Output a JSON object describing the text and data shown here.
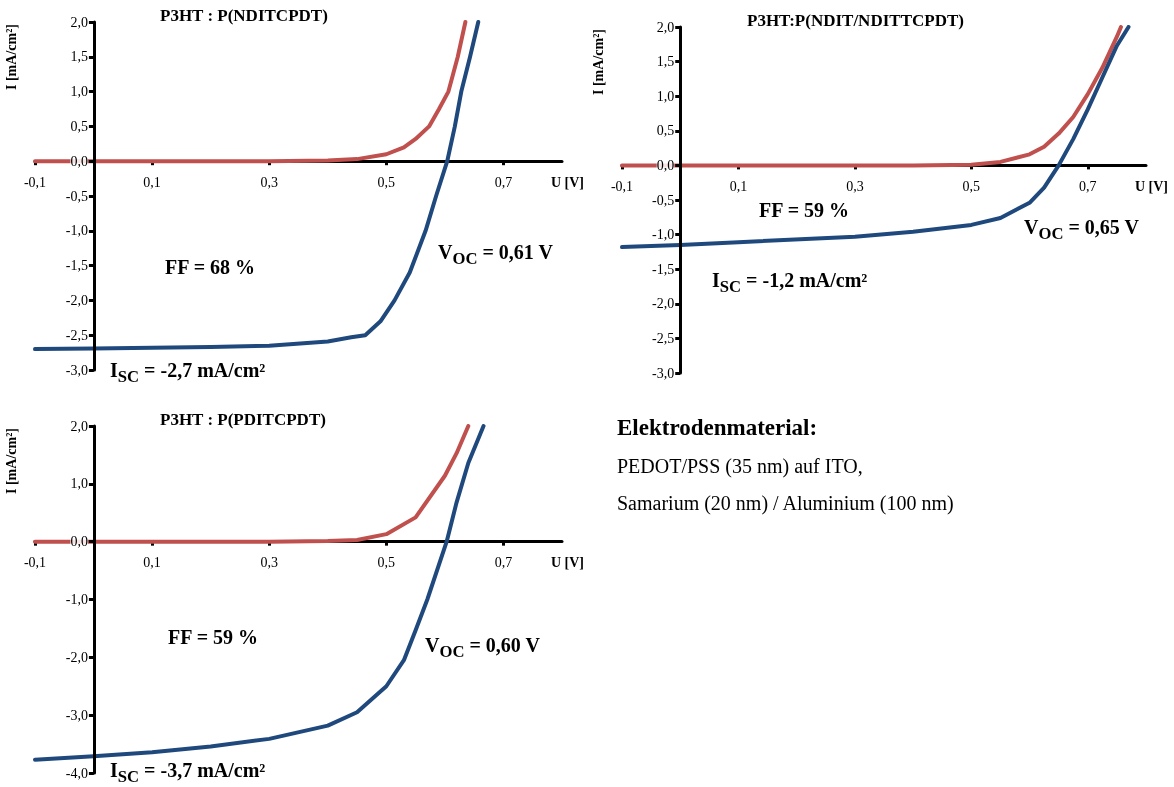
{
  "chart_data": [
    {
      "type": "line",
      "title": "P3HT : P(NDITCPDT)",
      "xlabel": "U [V]",
      "ylabel": "I [mA/cm²]",
      "marker": "none",
      "line_style": "solid",
      "xlim": [
        -0.1,
        0.8
      ],
      "xticks": [
        {
          "value": -0.1,
          "label": "-0,1"
        },
        {
          "value": 0.1,
          "label": "0,1"
        },
        {
          "value": 0.3,
          "label": "0,3"
        },
        {
          "value": 0.5,
          "label": "0,5"
        },
        {
          "value": 0.7,
          "label": "0,7"
        }
      ],
      "ylim": [
        -3,
        2
      ],
      "yticks": [
        {
          "value": -3,
          "label": "-3,0"
        },
        {
          "value": -2.5,
          "label": "-2,5"
        },
        {
          "value": -2,
          "label": "-2,0"
        },
        {
          "value": -1.5,
          "label": "-1,5"
        },
        {
          "value": -1,
          "label": "-1,0"
        },
        {
          "value": -0.5,
          "label": "-0,5"
        },
        {
          "value": 0,
          "label": "0,0"
        },
        {
          "value": 0.5,
          "label": "0,5"
        },
        {
          "value": 1,
          "label": "1,0"
        },
        {
          "value": 1.5,
          "label": "1,5"
        },
        {
          "value": 2,
          "label": "2,0"
        }
      ],
      "series": [
        {
          "color": "#c0504d",
          "x": [
            -0.1,
            0.3,
            0.4,
            0.45,
            0.5,
            0.53,
            0.55,
            0.573,
            0.59,
            0.606,
            0.622,
            0.635
          ],
          "values": [
            0,
            0,
            0.01,
            0.03,
            0.1,
            0.2,
            0.32,
            0.5,
            0.75,
            1.0,
            1.5,
            2.0
          ]
        },
        {
          "color": "#1f497d",
          "x": [
            -0.1,
            0,
            0.1,
            0.2,
            0.3,
            0.4,
            0.44,
            0.464,
            0.49,
            0.514,
            0.54,
            0.567,
            0.585,
            0.604,
            0.617,
            0.628,
            0.643,
            0.657
          ],
          "values": [
            -2.7,
            -2.69,
            -2.68,
            -2.67,
            -2.65,
            -2.59,
            -2.53,
            -2.5,
            -2.3,
            -2.0,
            -1.6,
            -1.0,
            -0.5,
            0,
            0.5,
            1.0,
            1.5,
            2.0
          ]
        }
      ],
      "annotations": [
        "FF = 68 %",
        "V$_{OC}$ = 0,61 V",
        "I$_{SC}$ = -2,7 mA/cm²"
      ]
    },
    {
      "type": "line",
      "title": "P3HT:P(NDIT/NDITTCPDT)",
      "xlabel": "U [V]",
      "ylabel": "I [mA/cm²]",
      "marker": "none",
      "line_style": "solid",
      "xlim": [
        -0.1,
        0.8
      ],
      "xticks": [
        {
          "value": -0.1,
          "label": "-0,1"
        },
        {
          "value": 0.1,
          "label": "0,1"
        },
        {
          "value": 0.3,
          "label": "0,3"
        },
        {
          "value": 0.5,
          "label": "0,5"
        },
        {
          "value": 0.7,
          "label": "0,7"
        }
      ],
      "ylim": [
        -3,
        2
      ],
      "yticks": [
        {
          "value": -3,
          "label": "-3,0"
        },
        {
          "value": -2.5,
          "label": "-2,5"
        },
        {
          "value": -2,
          "label": "-2,0"
        },
        {
          "value": -1.5,
          "label": "-1,5"
        },
        {
          "value": -1,
          "label": "-1,0"
        },
        {
          "value": -0.5,
          "label": "-0,5"
        },
        {
          "value": 0,
          "label": "0,0"
        },
        {
          "value": 0.5,
          "label": "0,5"
        },
        {
          "value": 1,
          "label": "1,0"
        },
        {
          "value": 1.5,
          "label": "1,5"
        },
        {
          "value": 2,
          "label": "2,0"
        }
      ],
      "series": [
        {
          "color": "#c0504d",
          "x": [
            -0.1,
            0.4,
            0.5,
            0.55,
            0.6,
            0.625,
            0.65,
            0.675,
            0.7,
            0.725,
            0.75,
            0.757
          ],
          "values": [
            0,
            0,
            0.01,
            0.05,
            0.16,
            0.27,
            0.46,
            0.7,
            1.03,
            1.41,
            1.86,
            2.0
          ]
        },
        {
          "color": "#1f497d",
          "x": [
            -0.1,
            0,
            0.1,
            0.3,
            0.4,
            0.5,
            0.55,
            0.6,
            0.625,
            0.65,
            0.675,
            0.7,
            0.725,
            0.75,
            0.77
          ],
          "values": [
            -1.18,
            -1.15,
            -1.11,
            -1.03,
            -0.96,
            -0.86,
            -0.76,
            -0.54,
            -0.32,
            0,
            0.38,
            0.81,
            1.27,
            1.73,
            2.0
          ]
        }
      ],
      "annotations": [
        "FF = 59 %",
        "V$_{OC}$ = 0,65 V",
        "I$_{SC}$ = -1,2 mA/cm²"
      ]
    },
    {
      "type": "line",
      "title": "P3HT : P(PDITCPDT)",
      "xlabel": "U [V]",
      "ylabel": "I [mA/cm²]",
      "marker": "none",
      "line_style": "solid",
      "xlim": [
        -0.1,
        0.8
      ],
      "xticks": [
        {
          "value": -0.1,
          "label": "-0,1"
        },
        {
          "value": 0.1,
          "label": "0,1"
        },
        {
          "value": 0.3,
          "label": "0,3"
        },
        {
          "value": 0.5,
          "label": "0,5"
        },
        {
          "value": 0.7,
          "label": "0,7"
        }
      ],
      "ylim": [
        -4,
        2
      ],
      "yticks": [
        {
          "value": -4,
          "label": "-4,0"
        },
        {
          "value": -3,
          "label": "-3,0"
        },
        {
          "value": -2,
          "label": "-2,0"
        },
        {
          "value": -1,
          "label": "-1,0"
        },
        {
          "value": 0,
          "label": "0,0"
        },
        {
          "value": 1,
          "label": "1,0"
        },
        {
          "value": 2,
          "label": "2,0"
        }
      ],
      "series": [
        {
          "color": "#c0504d",
          "x": [
            -0.1,
            0.3,
            0.4,
            0.45,
            0.5,
            0.55,
            0.6,
            0.62,
            0.64
          ],
          "values": [
            0,
            0,
            0.01,
            0.03,
            0.13,
            0.42,
            1.14,
            1.53,
            2.0
          ]
        },
        {
          "color": "#1f497d",
          "x": [
            -0.1,
            0,
            0.1,
            0.2,
            0.3,
            0.4,
            0.45,
            0.5,
            0.53,
            0.55,
            0.57,
            0.603,
            0.62,
            0.64,
            0.666
          ],
          "values": [
            -3.77,
            -3.71,
            -3.64,
            -3.54,
            -3.41,
            -3.18,
            -2.95,
            -2.5,
            -2.05,
            -1.53,
            -1.0,
            0,
            0.68,
            1.36,
            2.0
          ]
        }
      ],
      "annotations": [
        "FF = 59 %",
        "V$_{OC}$ = 0,60 V",
        "I$_{SC}$ = -3,7 mA/cm²"
      ]
    },
    {
      "type": "other",
      "title": "Elektrodenmaterial:",
      "annotations": [
        "PEDOT/PSS (35 nm) auf ITO,",
        "Samarium (20 nm) / Aluminium (100 nm)"
      ]
    }
  ]
}
